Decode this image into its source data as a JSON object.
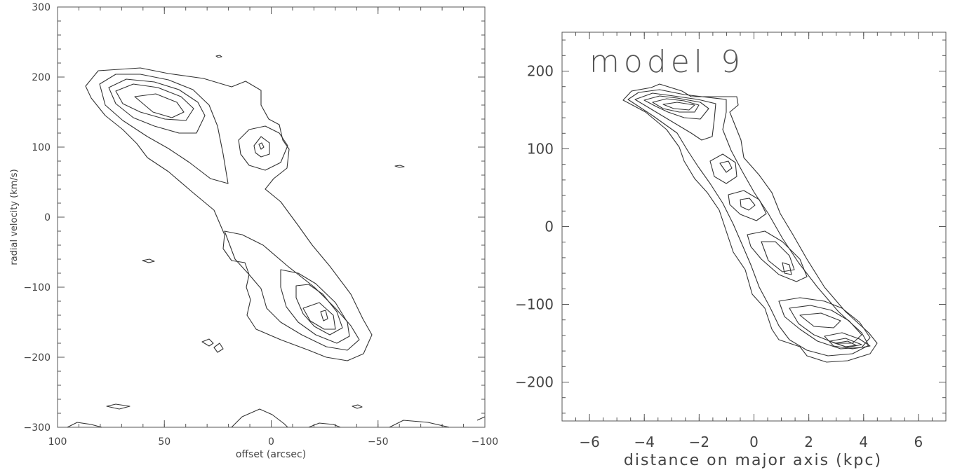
{
  "chart_data": [
    {
      "type": "contour",
      "title": "",
      "xlabel": "offset (arcsec)",
      "ylabel": "radial velocity (km/s)",
      "xlim": [
        100,
        -100
      ],
      "ylim": [
        -300,
        300
      ],
      "x_ticks": [
        "100",
        "50",
        "0",
        "−50",
        "−100"
      ],
      "y_ticks": [
        "300",
        "200",
        "100",
        "0",
        "−100",
        "−200",
        "−300"
      ],
      "features": [
        {
          "name": "",
          "peak_x": 52,
          "peak_y": 160
        },
        {
          "name": "",
          "peak_x": 5,
          "peak_y": 102
        },
        {
          "name": "",
          "peak_x": -27,
          "peak_y": -143
        }
      ]
    },
    {
      "type": "contour",
      "title": "model 9",
      "xlabel": "distance on major axis (kpc)",
      "ylabel": "",
      "xlim": [
        -7,
        7
      ],
      "ylim": [
        -250,
        250
      ],
      "x_ticks": [
        "−6",
        "−4",
        "−2",
        "0",
        "2",
        "4",
        "6"
      ],
      "y_ticks": [
        "200",
        "100",
        "0",
        "−100",
        "−200"
      ],
      "features": [
        {
          "name": "",
          "peak_x": -2.2,
          "peak_y": 150
        },
        {
          "name": "",
          "peak_x": 3.2,
          "peak_y": -155
        }
      ]
    }
  ]
}
